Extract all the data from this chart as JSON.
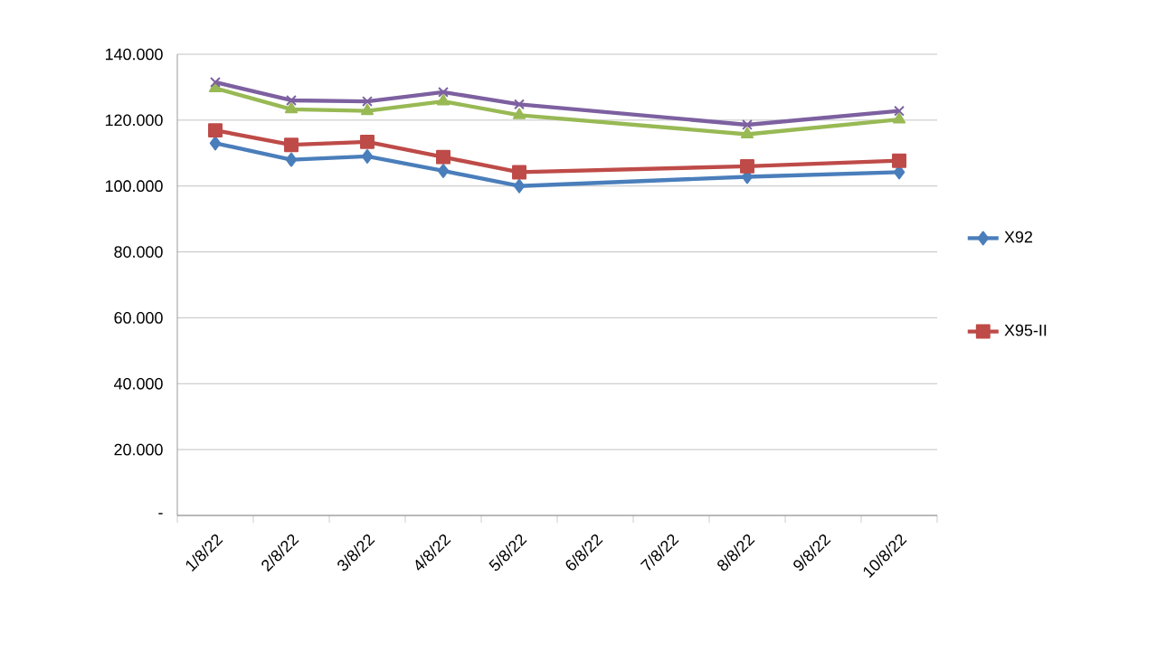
{
  "chart_data": {
    "type": "line",
    "categories": [
      "1/8/22",
      "2/8/22",
      "3/8/22",
      "4/8/22",
      "5/8/22",
      "6/8/22",
      "7/8/22",
      "8/8/22",
      "9/8/22",
      "10/8/22"
    ],
    "series": [
      {
        "name": "X92",
        "color": "#4a7ebb",
        "marker": "diamond",
        "values": [
          113000,
          108000,
          109000,
          104600,
          100000,
          null,
          null,
          102800,
          null,
          104200
        ]
      },
      {
        "name": "X95-II",
        "color": "#be4b48",
        "marker": "square",
        "values": [
          116900,
          112500,
          113400,
          108800,
          104200,
          null,
          null,
          106000,
          null,
          107700
        ]
      },
      {
        "color": "#98b954",
        "marker": "triangle",
        "values": [
          129700,
          123300,
          122800,
          125700,
          121500,
          null,
          null,
          115700,
          null,
          120200
        ]
      },
      {
        "color": "#7d60a0",
        "marker": "cross",
        "values": [
          131500,
          126000,
          125700,
          128500,
          124800,
          null,
          null,
          118600,
          null,
          122800
        ]
      }
    ],
    "ylim": [
      0,
      140000
    ],
    "yticks": [
      {
        "value": 0,
        "label": "-"
      },
      {
        "value": 20000,
        "label": "20.000"
      },
      {
        "value": 40000,
        "label": "40.000"
      },
      {
        "value": 60000,
        "label": "60.000"
      },
      {
        "value": 80000,
        "label": "80.000"
      },
      {
        "value": 100000,
        "label": "100.000"
      },
      {
        "value": 120000,
        "label": "120.000"
      },
      {
        "value": 140000,
        "label": "140.000"
      }
    ],
    "grid": "y",
    "legend": "right",
    "line_style": "solid"
  }
}
